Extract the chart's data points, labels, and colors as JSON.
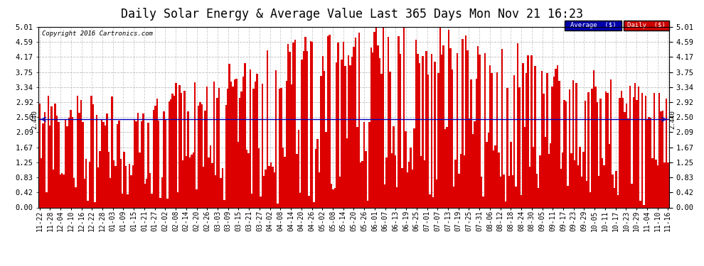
{
  "title": "Daily Solar Energy & Average Value Last 365 Days Mon Nov 21 16:23",
  "copyright": "Copyright 2016 Cartronics.com",
  "average_value": 2.44,
  "average_label": "2.440",
  "ylim": [
    0,
    5.01
  ],
  "yticks": [
    0.0,
    0.42,
    0.83,
    1.25,
    1.67,
    2.09,
    2.5,
    2.92,
    3.34,
    3.75,
    4.17,
    4.59,
    5.01
  ],
  "bar_color": "#dd0000",
  "average_line_color": "#0000bb",
  "background_color": "#ffffff",
  "grid_color": "#aaaaaa",
  "title_fontsize": 12,
  "legend_avg_color": "#0000aa",
  "legend_daily_color": "#cc0000",
  "x_labels": [
    "11-22",
    "11-28",
    "12-04",
    "12-10",
    "12-16",
    "12-22",
    "12-28",
    "01-03",
    "01-09",
    "01-15",
    "01-21",
    "01-27",
    "02-02",
    "02-08",
    "02-14",
    "02-20",
    "02-26",
    "03-03",
    "03-09",
    "03-15",
    "03-21",
    "03-27",
    "04-02",
    "04-08",
    "04-14",
    "04-20",
    "04-26",
    "05-02",
    "05-08",
    "05-14",
    "05-20",
    "05-26",
    "06-01",
    "06-07",
    "06-13",
    "06-19",
    "06-25",
    "07-01",
    "07-07",
    "07-13",
    "07-19",
    "07-25",
    "07-31",
    "08-06",
    "08-12",
    "08-18",
    "08-24",
    "08-30",
    "09-05",
    "09-11",
    "09-17",
    "09-23",
    "09-29",
    "10-05",
    "10-11",
    "10-17",
    "10-23",
    "10-29",
    "11-04",
    "11-10",
    "11-16"
  ],
  "num_bars": 365,
  "seed": 42
}
